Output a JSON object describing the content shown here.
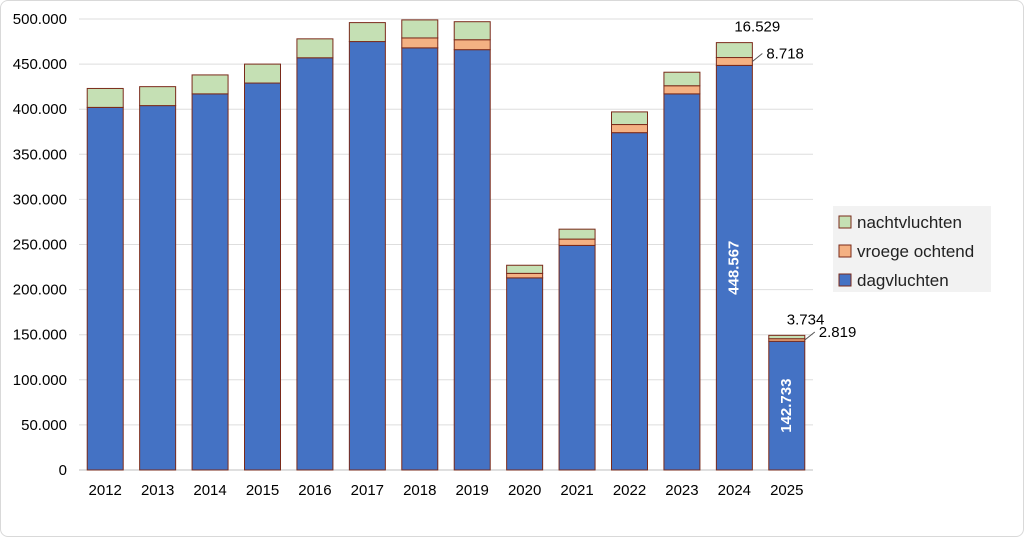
{
  "chart_data": {
    "type": "bar",
    "stacked": true,
    "categories": [
      "2012",
      "2013",
      "2014",
      "2015",
      "2016",
      "2017",
      "2018",
      "2019",
      "2020",
      "2021",
      "2022",
      "2023",
      "2024",
      "2025"
    ],
    "series": [
      {
        "name": "dagvluchten",
        "color": "#4472c4",
        "values": [
          402000,
          404000,
          417000,
          429000,
          457000,
          475000,
          468000,
          466000,
          213000,
          249000,
          374000,
          417000,
          448567,
          142733
        ]
      },
      {
        "name": "vroege ochtend",
        "color": "#f4b183",
        "values": [
          0,
          0,
          0,
          0,
          0,
          0,
          11000,
          11000,
          5000,
          7000,
          9000,
          9000,
          8718,
          2819
        ]
      },
      {
        "name": "nachtvluchten",
        "color": "#c5e0b4",
        "values": [
          21000,
          21000,
          21000,
          21000,
          21000,
          21000,
          20000,
          20000,
          9000,
          11000,
          14000,
          15000,
          16529,
          3734
        ]
      }
    ],
    "ylim": [
      0,
      500000
    ],
    "yticks": [
      "0",
      "50.000",
      "100.000",
      "150.000",
      "200.000",
      "250.000",
      "300.000",
      "350.000",
      "400.000",
      "450.000",
      "500.000"
    ],
    "legend": {
      "placement": "right",
      "order": [
        "nachtvluchten",
        "vroege ochtend",
        "dagvluchten"
      ]
    },
    "annotations": [
      {
        "category": "2024",
        "series": "dagvluchten",
        "text": "448.567"
      },
      {
        "category": "2024",
        "series": "vroege ochtend",
        "text": "8.718"
      },
      {
        "category": "2024",
        "series": "nachtvluchten",
        "text": "16.529"
      },
      {
        "category": "2025",
        "series": "dagvluchten",
        "text": "142.733"
      },
      {
        "category": "2025",
        "series": "vroege ochtend",
        "text": "2.819"
      },
      {
        "category": "2025",
        "series": "nachtvluchten",
        "text": "3.734"
      }
    ],
    "grid": true,
    "xlabel": "",
    "ylabel": "",
    "title": ""
  }
}
